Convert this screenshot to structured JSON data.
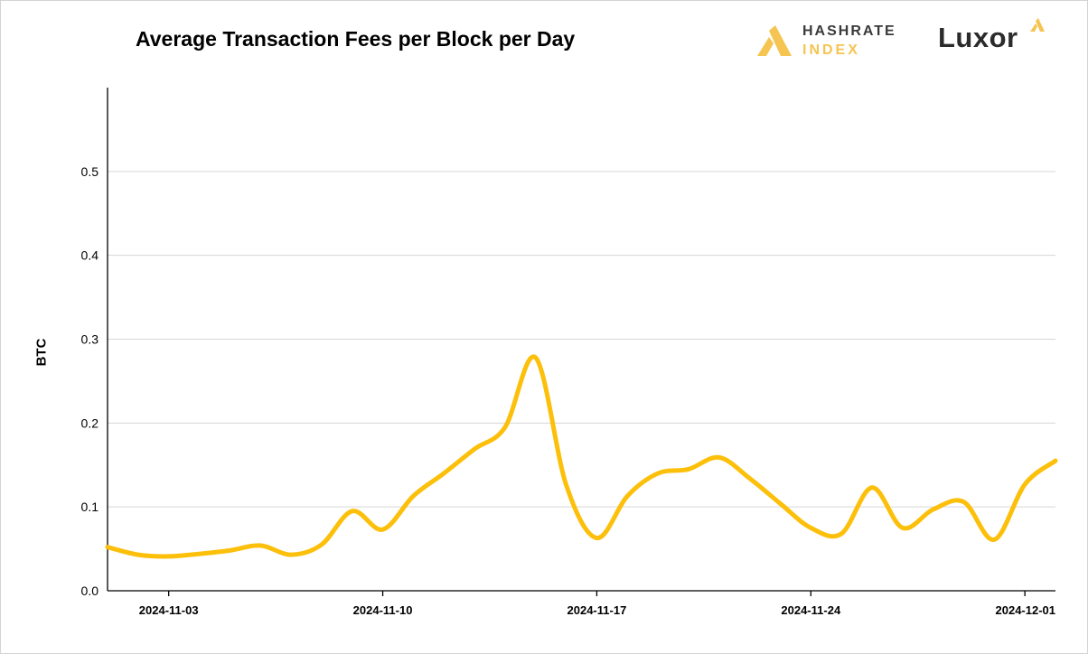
{
  "chart_data": {
    "type": "line",
    "title": "Average Transaction Fees per Block per Day",
    "ylabel": "BTC",
    "xlabel": "",
    "ylim": [
      0,
      0.6
    ],
    "yticks": [
      "0.0",
      "0.1",
      "0.2",
      "0.3",
      "0.4",
      "0.5"
    ],
    "ytick_values": [
      0,
      0.1,
      0.2,
      0.3,
      0.4,
      0.5
    ],
    "xlim": [
      "2024-11-01",
      "2024-12-02"
    ],
    "xticks": [
      "2024-11-03",
      "2024-11-10",
      "2024-11-17",
      "2024-11-24",
      "2024-12-01"
    ],
    "grid": "horizontal",
    "series": [
      {
        "color": "#fcbf0a",
        "x": [
          "2024-11-01",
          "2024-11-02",
          "2024-11-03",
          "2024-11-04",
          "2024-11-05",
          "2024-11-06",
          "2024-11-07",
          "2024-11-08",
          "2024-11-09",
          "2024-11-10",
          "2024-11-11",
          "2024-11-12",
          "2024-11-13",
          "2024-11-14",
          "2024-11-15",
          "2024-11-16",
          "2024-11-17",
          "2024-11-18",
          "2024-11-19",
          "2024-11-20",
          "2024-11-21",
          "2024-11-22",
          "2024-11-23",
          "2024-11-24",
          "2024-11-25",
          "2024-11-26",
          "2024-11-27",
          "2024-11-28",
          "2024-11-29",
          "2024-11-30",
          "2024-12-01",
          "2024-12-02"
        ],
        "values": [
          0.052,
          0.043,
          0.041,
          0.044,
          0.048,
          0.054,
          0.043,
          0.055,
          0.095,
          0.073,
          0.113,
          0.14,
          0.169,
          0.195,
          0.278,
          0.126,
          0.063,
          0.113,
          0.14,
          0.145,
          0.159,
          0.134,
          0.104,
          0.075,
          0.068,
          0.123,
          0.075,
          0.097,
          0.106,
          0.061,
          0.127,
          0.155
        ]
      }
    ]
  },
  "logos": {
    "hashrate_line1": "HASHRATE",
    "hashrate_line2": "INDEX",
    "luxor": "Luxor"
  }
}
